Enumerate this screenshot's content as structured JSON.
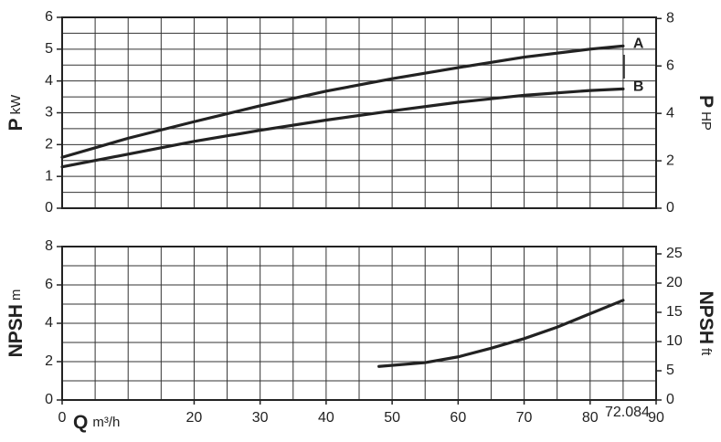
{
  "chart_data": [
    {
      "type": "line",
      "ylabel": {
        "symbol": "P",
        "unit": "kW"
      },
      "y2label": {
        "symbol": "P",
        "unit": "HP"
      },
      "x": [
        0,
        10,
        20,
        30,
        40,
        50,
        60,
        70,
        80,
        85
      ],
      "series": [
        {
          "name": "A",
          "color": "#222222",
          "values": [
            1.6,
            2.2,
            2.72,
            3.22,
            3.68,
            4.07,
            4.42,
            4.75,
            5.0,
            5.1
          ]
        },
        {
          "name": "B",
          "color": "#222222",
          "values": [
            1.3,
            1.7,
            2.1,
            2.45,
            2.77,
            3.06,
            3.33,
            3.55,
            3.7,
            3.75
          ]
        }
      ],
      "xlim": [
        0,
        90
      ],
      "ylim": [
        0,
        6
      ],
      "yticks": [
        0,
        1,
        2,
        3,
        4,
        5,
        6
      ],
      "y2lim": [
        0,
        8.05
      ],
      "y2ticks": [
        0,
        2,
        4,
        6,
        8
      ],
      "minor_xticks": [
        0,
        5,
        10,
        15,
        20,
        25,
        30,
        35,
        40,
        45,
        50,
        55,
        60,
        65,
        70,
        75,
        80,
        85,
        90
      ],
      "minor_yticks": [
        0,
        0.5,
        1,
        1.5,
        2,
        2.5,
        3,
        3.5,
        4,
        4.5,
        5,
        5.5,
        6
      ],
      "grid": true
    },
    {
      "type": "line",
      "ylabel": {
        "symbol": "NPSH",
        "unit": "m"
      },
      "y2label": {
        "symbol": "NPSH",
        "unit": "ft"
      },
      "xlabel": {
        "symbol": "Q",
        "unit": "m³/h"
      },
      "annotation": "72.084",
      "x": [
        48,
        55,
        60,
        65,
        70,
        75,
        80,
        85
      ],
      "series": [
        {
          "name": "NPSH",
          "color": "#222222",
          "values": [
            1.75,
            1.95,
            2.25,
            2.7,
            3.2,
            3.8,
            4.5,
            5.2
          ]
        }
      ],
      "xlim": [
        0,
        90
      ],
      "xticks": [
        0,
        20,
        30,
        40,
        50,
        60,
        70,
        80,
        90
      ],
      "ylim": [
        0,
        8
      ],
      "yticks": [
        0,
        2,
        4,
        6,
        8
      ],
      "y2lim": [
        0,
        26.25
      ],
      "y2ticks": [
        0,
        5,
        10,
        15,
        20,
        25
      ],
      "minor_xticks": [
        0,
        5,
        10,
        15,
        20,
        25,
        30,
        35,
        40,
        45,
        50,
        55,
        60,
        65,
        70,
        75,
        80,
        85,
        90
      ],
      "minor_yticks": [
        0,
        1,
        2,
        3,
        4,
        5,
        6,
        7,
        8
      ],
      "grid": true
    }
  ]
}
